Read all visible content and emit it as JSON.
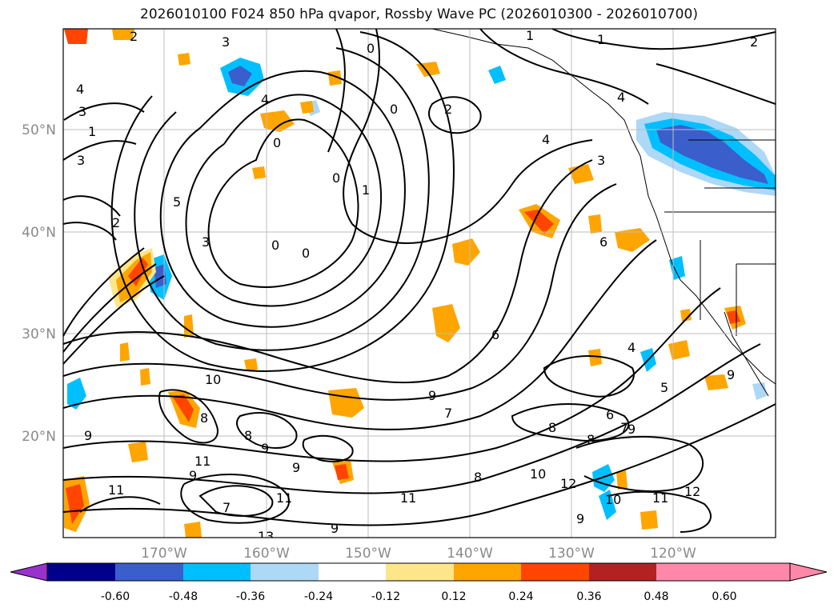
{
  "title": "2026010100 F024 850 hPa qvapor, Rossby Wave PC (2026010300 - 2026010700)",
  "lat_ticks": [
    "50°N",
    "40°N",
    "30°N",
    "20°N"
  ],
  "lon_ticks": [
    "170°W",
    "160°W",
    "150°W",
    "140°W",
    "130°W",
    "120°W"
  ],
  "colorbar": {
    "ticks": [
      "-0.60",
      "-0.48",
      "-0.36",
      "-0.24",
      "-0.12",
      "0.12",
      "0.24",
      "0.36",
      "0.48",
      "0.60"
    ],
    "colors": [
      "#9932cc",
      "#00008b",
      "#3a5fcd",
      "#00bfff",
      "#add8f6",
      "#ffffff",
      "#fde68a",
      "#ffa500",
      "#ff4500",
      "#b22222",
      "#ff88aa"
    ]
  },
  "contour_labels": [
    "2",
    "3",
    "0",
    "1",
    "1",
    "2",
    "4",
    "3",
    "4",
    "2",
    "1",
    "3",
    "0",
    "4",
    "0",
    "0",
    "4",
    "3",
    "2",
    "1",
    "0",
    "0",
    "5",
    "3",
    "6",
    "6",
    "9",
    "7",
    "8",
    "6",
    "7",
    "9",
    "10",
    "8",
    "9",
    "11",
    "9",
    "8",
    "9",
    "9",
    "11",
    "11",
    "9",
    "13",
    "12",
    "11",
    "9",
    "10",
    "12",
    "11",
    "8",
    "10",
    "8",
    "7",
    "5",
    "9",
    "4"
  ],
  "shading_colors": {
    "positive_light": "#fde68a",
    "positive_mid": "#ffa500",
    "positive_strong": "#ff4500",
    "negative_light": "#add8f6",
    "negative_mid": "#00bfff",
    "negative_strong": "#3a5fcd",
    "negative_max": "#00008b"
  }
}
